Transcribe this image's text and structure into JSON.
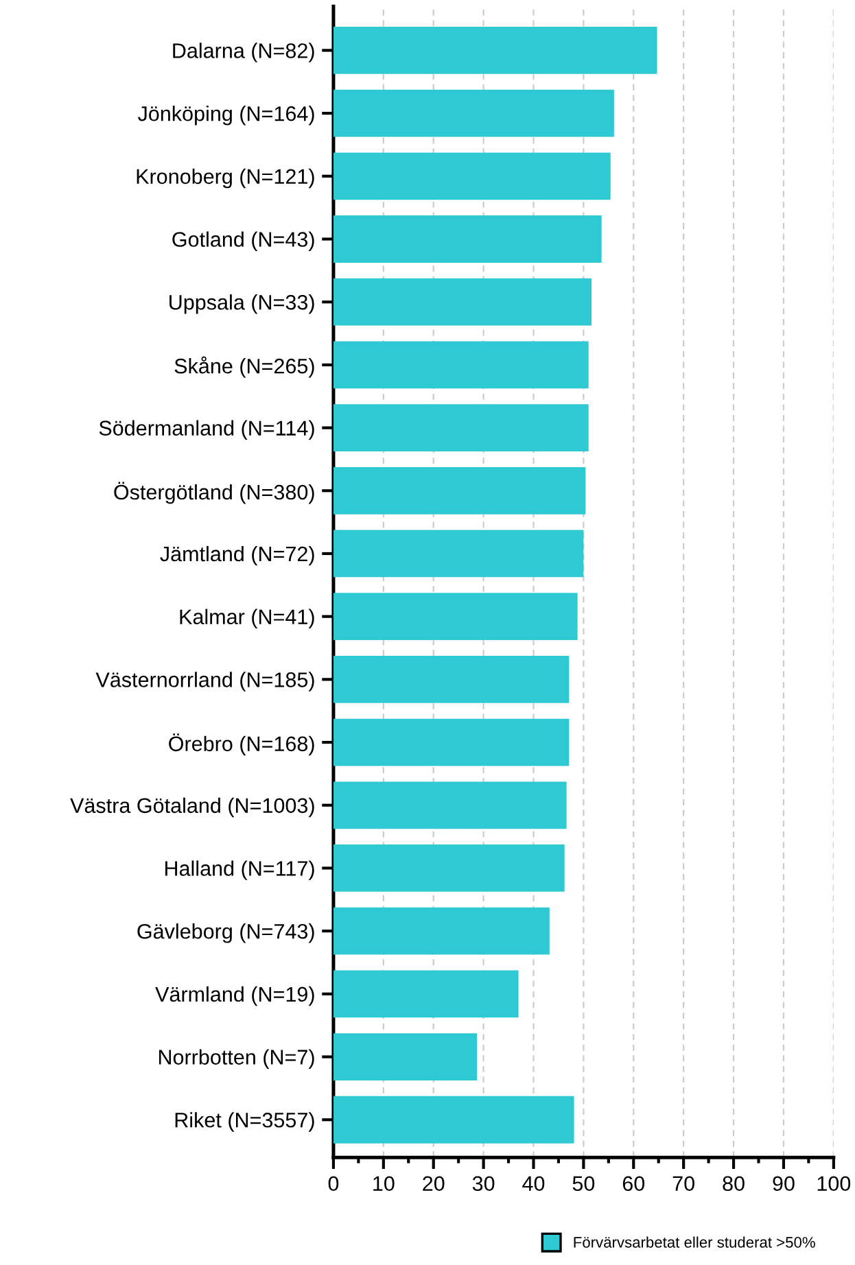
{
  "chart_data": {
    "type": "bar",
    "orientation": "horizontal",
    "categories": [
      "Dalarna (N=82)",
      "Jönköping (N=164)",
      "Kronoberg (N=121)",
      "Gotland (N=43)",
      "Uppsala (N=33)",
      "Skåne (N=265)",
      "Södermanland (N=114)",
      "Östergötland (N=380)",
      "Jämtland (N=72)",
      "Kalmar (N=41)",
      "Västernorrland (N=185)",
      "Örebro (N=168)",
      "Västra Götaland (N=1003)",
      "Halland (N=117)",
      "Gävleborg (N=743)",
      "Värmland (N=19)",
      "Norrbotten (N=7)",
      "Riket (N=3557)"
    ],
    "series": [
      {
        "name": "Förvärvsarbetat eller studerat >50%",
        "color": "#2ec9d3",
        "values": [
          64.7,
          56.1,
          55.4,
          53.6,
          51.6,
          51.0,
          51.0,
          50.4,
          50.0,
          48.8,
          47.1,
          47.1,
          46.6,
          46.2,
          43.2,
          37.0,
          28.7,
          48.1
        ]
      }
    ],
    "xlim": [
      0,
      100
    ],
    "xticks": [
      0,
      10,
      20,
      30,
      40,
      50,
      60,
      70,
      80,
      90,
      100
    ],
    "grid": "x",
    "legend": "bottom"
  }
}
